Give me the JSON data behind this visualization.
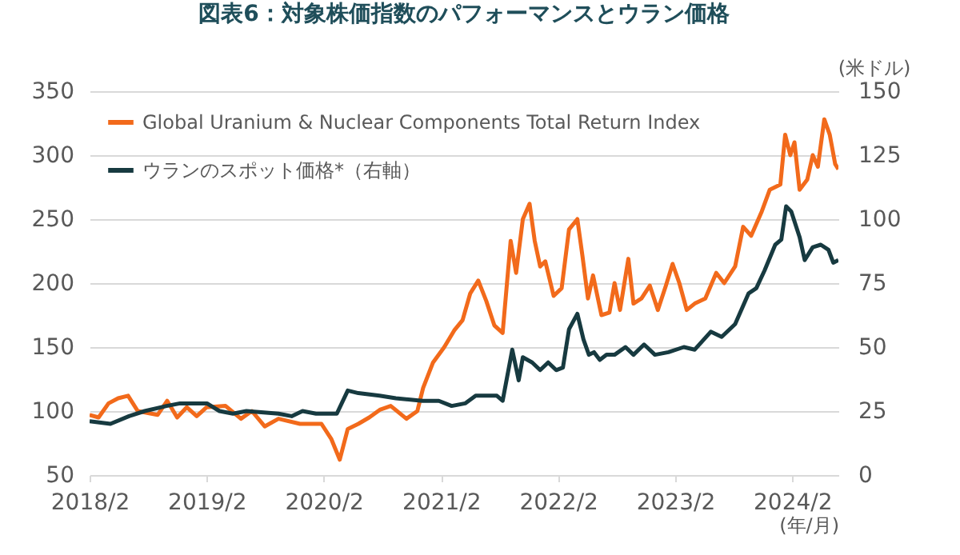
{
  "chart_data": {
    "type": "line",
    "title": "図表6：対象株価指数のパフォーマンスとウラン価格",
    "xlabel": "(年/月)",
    "y2label": "(米ドル)",
    "xlim": [
      "2018-02-01",
      "2024-06-24"
    ],
    "xticks": [
      {
        "value": "2018-02-01",
        "label": "2018/2"
      },
      {
        "value": "2019-02-01",
        "label": "2019/2"
      },
      {
        "value": "2020-02-01",
        "label": "2020/2"
      },
      {
        "value": "2021-02-01",
        "label": "2021/2"
      },
      {
        "value": "2022-02-01",
        "label": "2022/2"
      },
      {
        "value": "2023-02-01",
        "label": "2023/2"
      },
      {
        "value": "2024-02-01",
        "label": "2024/2"
      }
    ],
    "ylim": [
      50,
      350
    ],
    "yticks": [
      50,
      100,
      150,
      200,
      250,
      300,
      350
    ],
    "y2lim": [
      0,
      150
    ],
    "y2ticks": [
      0,
      25,
      50,
      75,
      100,
      125,
      150
    ],
    "grid": "y",
    "legend": "top left",
    "series": [
      {
        "name": "Global Uranium & Nuclear Components Total Return Index",
        "color": "#f26a1b",
        "x": [
          "2018-02-01",
          "2018-03-01",
          "2018-04-01",
          "2018-05-01",
          "2018-06-01",
          "2018-07-01",
          "2018-09-01",
          "2018-10-01",
          "2018-11-01",
          "2018-12-01",
          "2019-01-01",
          "2019-02-01",
          "2019-04-01",
          "2019-05-19",
          "2019-06-22",
          "2019-08-01",
          "2019-09-13",
          "2019-11-19",
          "2020-01-25",
          "2020-02-25",
          "2020-03-22",
          "2020-04-16",
          "2020-05-19",
          "2020-06-22",
          "2020-07-25",
          "2020-08-28",
          "2020-10-16",
          "2020-11-19",
          "2020-12-07",
          "2021-01-07",
          "2021-02-11",
          "2021-03-14",
          "2021-04-09",
          "2021-05-03",
          "2021-05-28",
          "2021-06-22",
          "2021-07-17",
          "2021-08-12",
          "2021-09-06",
          "2021-09-23",
          "2021-10-14",
          "2021-11-04",
          "2021-11-20",
          "2021-12-07",
          "2021-12-23",
          "2022-01-18",
          "2022-02-12",
          "2022-03-07",
          "2022-04-02",
          "2022-04-18",
          "2022-05-05",
          "2022-05-21",
          "2022-06-16",
          "2022-07-11",
          "2022-07-27",
          "2022-08-13",
          "2022-09-08",
          "2022-09-24",
          "2022-10-19",
          "2022-11-14",
          "2022-12-09",
          "2023-01-03",
          "2023-01-24",
          "2023-02-14",
          "2023-03-09",
          "2023-04-03",
          "2023-05-06",
          "2023-06-09",
          "2023-07-04",
          "2023-08-07",
          "2023-09-01",
          "2023-09-26",
          "2023-10-29",
          "2023-11-23",
          "2023-12-26",
          "2024-01-10",
          "2024-01-26",
          "2024-02-08",
          "2024-02-24",
          "2024-03-19",
          "2024-04-05",
          "2024-04-21",
          "2024-05-11",
          "2024-05-28",
          "2024-06-14",
          "2024-06-24"
        ],
        "values": [
          97,
          95,
          106,
          110,
          112,
          100,
          97,
          108,
          95,
          103,
          96,
          103,
          104,
          94,
          100,
          88,
          94,
          90,
          90,
          78,
          62,
          86,
          90,
          95,
          101,
          104,
          94,
          100,
          118,
          138,
          150,
          163,
          171,
          192,
          202,
          186,
          167,
          161,
          233,
          208,
          250,
          262,
          233,
          213,
          217,
          190,
          196,
          242,
          250,
          221,
          188,
          206,
          175,
          177,
          200,
          179,
          219,
          184,
          188,
          198,
          179,
          198,
          215,
          200,
          179,
          184,
          188,
          208,
          200,
          213,
          244,
          237,
          256,
          273,
          277,
          316,
          300,
          310,
          273,
          281,
          300,
          291,
          328,
          316,
          293,
          289
        ]
      },
      {
        "name": "ウランのスポット価格*（右軸）",
        "color": "#173a40",
        "axis": "y2",
        "x": [
          "2018-02-01",
          "2018-04-07",
          "2018-06-04",
          "2018-07-23",
          "2018-09-29",
          "2018-11-10",
          "2019-02-02",
          "2019-03-13",
          "2019-04-24",
          "2019-06-05",
          "2019-09-13",
          "2019-10-24",
          "2019-11-27",
          "2020-01-08",
          "2020-03-13",
          "2020-04-16",
          "2020-05-19",
          "2020-07-24",
          "2020-09-13",
          "2020-12-05",
          "2021-01-25",
          "2021-03-06",
          "2021-04-17",
          "2021-05-20",
          "2021-07-25",
          "2021-08-12",
          "2021-09-11",
          "2021-10-01",
          "2021-10-14",
          "2021-11-12",
          "2021-12-07",
          "2022-01-01",
          "2022-01-26",
          "2022-02-16",
          "2022-03-07",
          "2022-04-02",
          "2022-04-21",
          "2022-05-08",
          "2022-05-24",
          "2022-06-11",
          "2022-07-02",
          "2022-07-27",
          "2022-08-30",
          "2022-09-24",
          "2022-10-27",
          "2022-11-30",
          "2023-01-11",
          "2023-02-28",
          "2023-04-03",
          "2023-05-23",
          "2023-06-26",
          "2023-08-07",
          "2023-09-18",
          "2023-10-12",
          "2023-11-07",
          "2023-12-10",
          "2023-12-29",
          "2024-01-13",
          "2024-01-29",
          "2024-02-24",
          "2024-03-11",
          "2024-04-05",
          "2024-04-30",
          "2024-05-24",
          "2024-06-08",
          "2024-06-24"
        ],
        "values": [
          21,
          20,
          23,
          25,
          27,
          28,
          28,
          25,
          24,
          25,
          24,
          23,
          25,
          24,
          24,
          33,
          32,
          31,
          30,
          29,
          29,
          27,
          28,
          31,
          31,
          29,
          49,
          37,
          46,
          44,
          41,
          44,
          41,
          42,
          57,
          63,
          53,
          47,
          48,
          45,
          47,
          47,
          50,
          47,
          51,
          47,
          48,
          50,
          49,
          56,
          54,
          59,
          71,
          73,
          80,
          90,
          92,
          105,
          103,
          93,
          84,
          89,
          90,
          88,
          83,
          84
        ]
      }
    ]
  }
}
